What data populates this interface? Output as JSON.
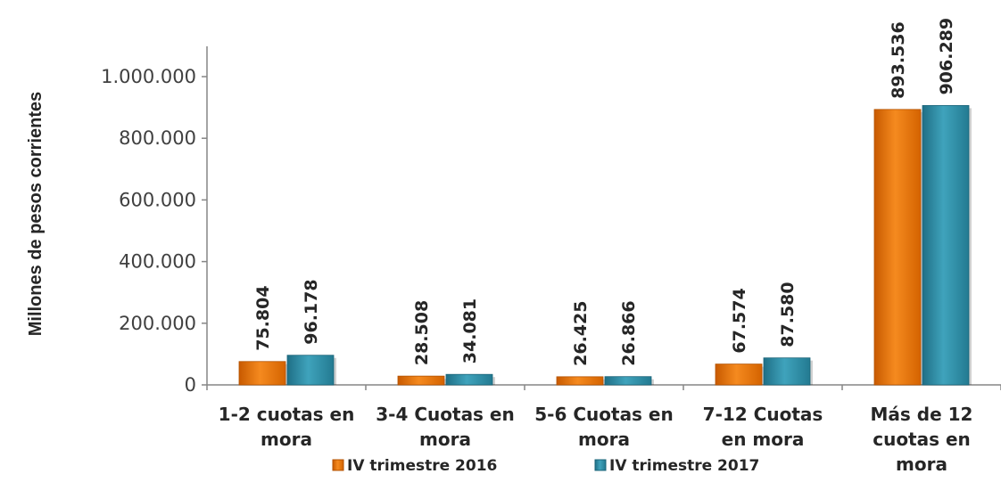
{
  "chart_data": {
    "type": "bar",
    "ylabel": "Millones de pesos corrientes",
    "xlabel": "",
    "ylim": [
      0,
      1000000
    ],
    "yticks": [
      "0",
      "200.000",
      "400.000",
      "600.000",
      "800.000",
      "1.000.000"
    ],
    "ytick_values": [
      0,
      200000,
      400000,
      600000,
      800000,
      1000000
    ],
    "categories": [
      [
        "1-2 cuotas en",
        "mora"
      ],
      [
        "3-4 Cuotas en",
        "mora"
      ],
      [
        "5-6 Cuotas en",
        "mora"
      ],
      [
        "7-12 Cuotas",
        "en mora"
      ],
      [
        "Más de 12",
        "cuotas en",
        "mora"
      ]
    ],
    "series": [
      {
        "name": "IV trimestre 2016",
        "color": "#E8700A",
        "values": [
          75804,
          28508,
          26425,
          67574,
          893536
        ],
        "labels": [
          "75.804",
          "28.508",
          "26.425",
          "67.574",
          "893.536"
        ]
      },
      {
        "name": "IV trimestre 2017",
        "color": "#2E8BA3",
        "values": [
          96178,
          34081,
          26866,
          87580,
          906289
        ],
        "labels": [
          "96.178",
          "34.081",
          "26.866",
          "87.580",
          "906.289"
        ]
      }
    ],
    "legend_position": "bottom",
    "grid": false
  }
}
